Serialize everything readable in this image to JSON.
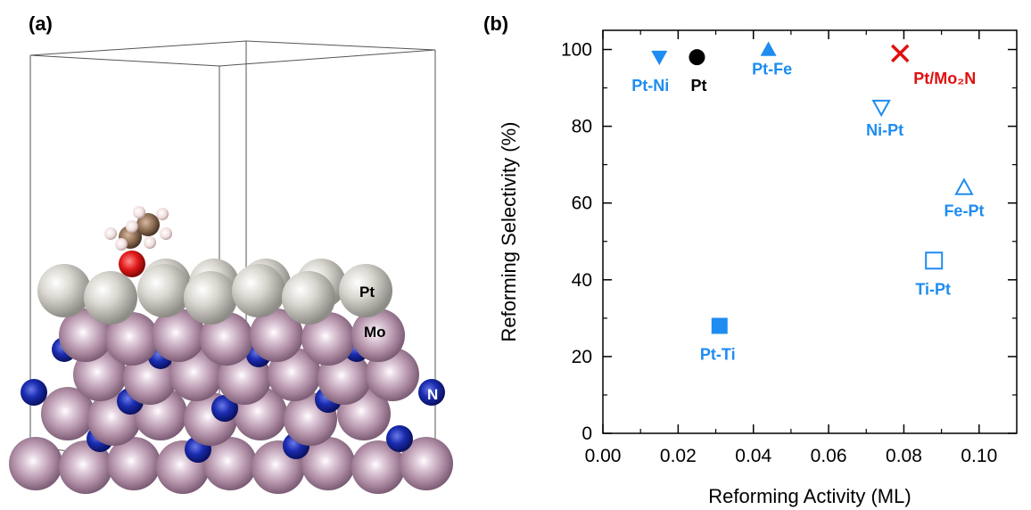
{
  "panel_a": {
    "label": "(a)",
    "atom_labels": {
      "pt": "Pt",
      "mo": "Mo",
      "n": "N"
    },
    "colors": {
      "pt": "#c9c7c0",
      "mo": "#b08aa6",
      "n": "#1428a8",
      "c": "#8a6a50",
      "o": "#d81818",
      "h": "#f0dcdc"
    }
  },
  "panel_b": {
    "label": "(b)"
  },
  "chart_data": {
    "type": "scatter",
    "xlabel": "Reforming Activity (ML)",
    "ylabel": "Reforming Selectivity (%)",
    "xlim": [
      0.0,
      0.11
    ],
    "ylim": [
      0,
      105
    ],
    "x_ticks": [
      "0.00",
      "0.02",
      "0.04",
      "0.06",
      "0.08",
      "0.10"
    ],
    "y_ticks": [
      "0",
      "20",
      "40",
      "60",
      "80",
      "100"
    ],
    "grid": false,
    "points": [
      {
        "label": "Pt-Ni",
        "x": 0.015,
        "y": 98,
        "marker": "triangle-down",
        "filled": true,
        "color": "#1e8cf0"
      },
      {
        "label": "Pt",
        "x": 0.025,
        "y": 98,
        "marker": "circle",
        "filled": true,
        "color": "#000000"
      },
      {
        "label": "Pt-Fe",
        "x": 0.044,
        "y": 100,
        "marker": "triangle-up",
        "filled": true,
        "color": "#1e8cf0"
      },
      {
        "label": "Pt/Mo₂N",
        "x": 0.079,
        "y": 99,
        "marker": "x",
        "filled": true,
        "color": "#e01010"
      },
      {
        "label": "Ni-Pt",
        "x": 0.074,
        "y": 85,
        "marker": "triangle-down",
        "filled": false,
        "color": "#1e8cf0"
      },
      {
        "label": "Fe-Pt",
        "x": 0.096,
        "y": 64,
        "marker": "triangle-up",
        "filled": false,
        "color": "#1e8cf0"
      },
      {
        "label": "Ti-Pt",
        "x": 0.088,
        "y": 45,
        "marker": "square",
        "filled": false,
        "color": "#1e8cf0"
      },
      {
        "label": "Pt-Ti",
        "x": 0.031,
        "y": 28,
        "marker": "square",
        "filled": true,
        "color": "#1e8cf0"
      }
    ]
  }
}
